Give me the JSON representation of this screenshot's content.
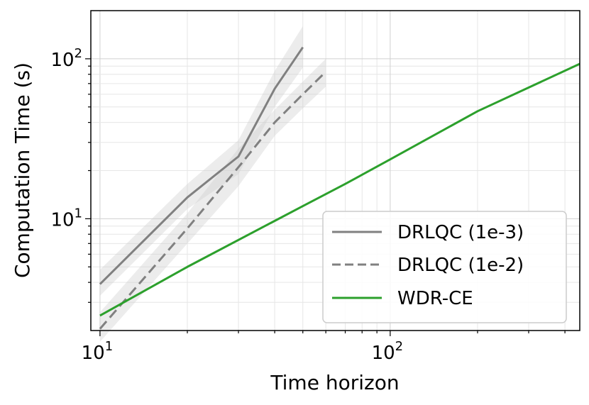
{
  "chart_data": {
    "type": "line",
    "xlabel": "Time horizon",
    "ylabel": "Computation Time (s)",
    "xscale": "log",
    "yscale": "log",
    "xlim": [
      9.3,
      450
    ],
    "ylim": [
      2.0,
      200
    ],
    "grid": true,
    "legend_position": "lower-right",
    "x_ticks": [
      {
        "value": 10,
        "base": "10",
        "exp": "1"
      },
      {
        "value": 100,
        "base": "10",
        "exp": "2"
      }
    ],
    "y_ticks": [
      {
        "value": 10,
        "base": "10",
        "exp": "1"
      },
      {
        "value": 100,
        "base": "10",
        "exp": "2"
      }
    ],
    "series": [
      {
        "name": "DRLQC (1e-3)",
        "color": "#808080",
        "style": "solid",
        "x": [
          10,
          20,
          30,
          40,
          50
        ],
        "y": [
          3.9,
          13.6,
          24.5,
          65,
          118
        ],
        "band_low": [
          3.3,
          11.5,
          19.0,
          50,
          88
        ],
        "band_high": [
          4.8,
          16.5,
          31.0,
          84,
          160
        ]
      },
      {
        "name": "DRLQC (1e-2)",
        "color": "#808080",
        "style": "dashed",
        "x": [
          10,
          20,
          30,
          40,
          50,
          60
        ],
        "y": [
          2.05,
          8.7,
          21.0,
          40,
          60,
          83
        ],
        "band_low": [
          1.7,
          7.0,
          16.0,
          33,
          49,
          67
        ],
        "band_high": [
          2.6,
          10.8,
          27.5,
          48,
          72,
          100
        ]
      },
      {
        "name": "WDR-CE",
        "color": "#2ca02c",
        "style": "solid",
        "x": [
          10,
          20,
          50,
          70,
          100,
          200,
          450
        ],
        "y": [
          2.48,
          5.0,
          12.0,
          16.5,
          23.5,
          47,
          93
        ]
      }
    ]
  }
}
